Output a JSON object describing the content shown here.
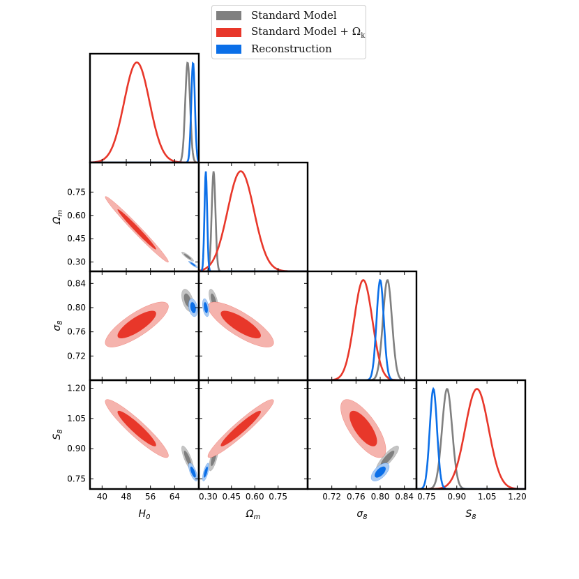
{
  "legend": {
    "items": [
      {
        "label": "Standard Model",
        "color": "#808080"
      },
      {
        "label": "Standard Model + Ω",
        "sub": "k",
        "color": "#e8372a"
      },
      {
        "label": "Reconstruction",
        "color": "#0b6fe8"
      }
    ]
  },
  "chart_data": {
    "type": "corner",
    "parameters": [
      {
        "key": "H0",
        "label": "H",
        "sub": "0",
        "range": [
          36,
          72
        ],
        "ticks": [
          40,
          48,
          56,
          64
        ],
        "tick_labels": [
          "40",
          "48",
          "56",
          "64"
        ]
      },
      {
        "key": "Om",
        "label": "Ω",
        "sub": "m",
        "range": [
          0.24,
          0.94
        ],
        "ticks": [
          0.3,
          0.45,
          0.6,
          0.75
        ],
        "tick_labels": [
          "0.30",
          "0.45",
          "0.60",
          "0.75"
        ]
      },
      {
        "key": "s8",
        "label": "σ",
        "sub": "8",
        "range": [
          0.68,
          0.86
        ],
        "ticks": [
          0.72,
          0.76,
          0.8,
          0.84
        ],
        "tick_labels": [
          "0.72",
          "0.76",
          "0.80",
          "0.84"
        ]
      },
      {
        "key": "S8",
        "label": "S",
        "sub": "8",
        "range": [
          0.7,
          1.24
        ],
        "ticks": [
          0.75,
          0.9,
          1.05,
          1.2
        ],
        "tick_labels": [
          "0.75",
          "0.90",
          "1.05",
          "1.20"
        ]
      }
    ],
    "series": [
      {
        "name": "Standard Model",
        "color": "#808080",
        "light": "#c4c4c4",
        "mean": {
          "H0": 68.3,
          "Om": 0.335,
          "s8": 0.812,
          "S8": 0.852
        },
        "sd": {
          "H0": 0.8,
          "Om": 0.012,
          "s8": 0.0075,
          "S8": 0.025
        },
        "corr": {
          "H0,Om": -0.9,
          "H0,s8": -0.45,
          "H0,S8": -0.8,
          "Om,s8": -0.6,
          "Om,S8": 0.7,
          "s8,S8": 0.85
        }
      },
      {
        "name": "Standard Model + Ω_k",
        "color": "#e8372a",
        "light": "#f5b3ad",
        "mean": {
          "H0": 51.5,
          "Om": 0.51,
          "s8": 0.772,
          "S8": 1.0
        },
        "sd": {
          "H0": 4.2,
          "Om": 0.085,
          "s8": 0.015,
          "S8": 0.058
        },
        "corr": {
          "H0,Om": -0.985,
          "H0,s8": 0.8,
          "H0,S8": -0.93,
          "Om,s8": -0.8,
          "Om,S8": 0.95,
          "s8,S8": -0.72
        }
      },
      {
        "name": "Reconstruction",
        "color": "#0b6fe8",
        "light": "#a9caf3",
        "mean": {
          "H0": 70.1,
          "Om": 0.285,
          "s8": 0.8,
          "S8": 0.784
        },
        "sd": {
          "H0": 0.6,
          "Om": 0.0085,
          "s8": 0.006,
          "S8": 0.018
        },
        "corr": {
          "H0,Om": -0.9,
          "H0,s8": -0.3,
          "H0,S8": -0.7,
          "Om,s8": -0.4,
          "Om,S8": 0.7,
          "s8,S8": 0.6
        }
      }
    ]
  }
}
